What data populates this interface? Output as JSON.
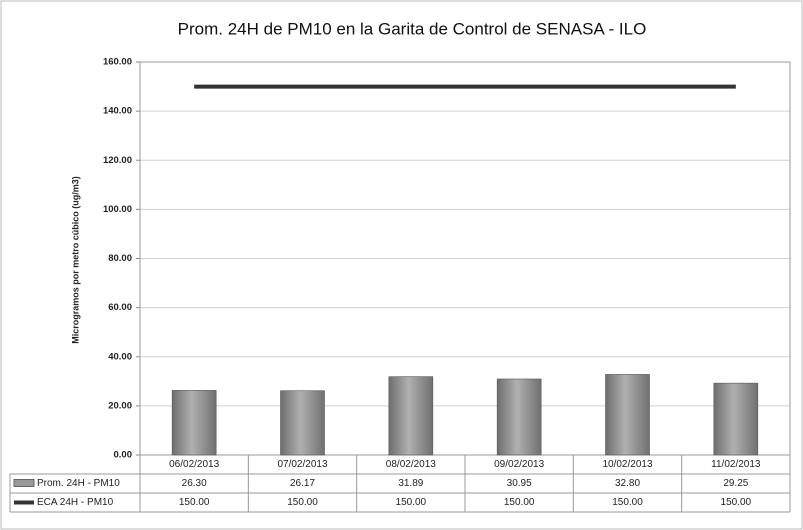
{
  "chart_data": {
    "type": "bar",
    "title": "Prom. 24H de PM10 en la Garita de Control de SENASA - ILO",
    "y_label": "Microgramos por metro cúbico (ug/m3)",
    "categories": [
      "06/02/2013",
      "07/02/2013",
      "08/02/2013",
      "09/02/2013",
      "10/02/2013",
      "11/02/2013"
    ],
    "series": [
      {
        "name": "Prom. 24H - PM10",
        "type": "bar",
        "color": "#8c8c8c",
        "values": [
          26.3,
          26.17,
          31.89,
          30.95,
          32.8,
          29.25
        ],
        "value_labels": [
          "26.30",
          "26.17",
          "31.89",
          "30.95",
          "32.80",
          "29.25"
        ]
      },
      {
        "name": "ECA 24H - PM10",
        "type": "line",
        "color": "#333333",
        "values": [
          150,
          150,
          150,
          150,
          150,
          150
        ],
        "value_labels": [
          "150.00",
          "150.00",
          "150.00",
          "150.00",
          "150.00",
          "150.00"
        ]
      }
    ],
    "ylim": [
      0,
      160
    ],
    "yticks": [
      {
        "value": 0,
        "label": "0.00"
      },
      {
        "value": 20,
        "label": "20.00"
      },
      {
        "value": 40,
        "label": "40.00"
      },
      {
        "value": 60,
        "label": "60.00"
      },
      {
        "value": 80,
        "label": "80.00"
      },
      {
        "value": 100,
        "label": "100.00"
      },
      {
        "value": 120,
        "label": "120.00"
      },
      {
        "value": 140,
        "label": "140.00"
      },
      {
        "value": 160,
        "label": "160.00"
      }
    ],
    "grid": true
  }
}
